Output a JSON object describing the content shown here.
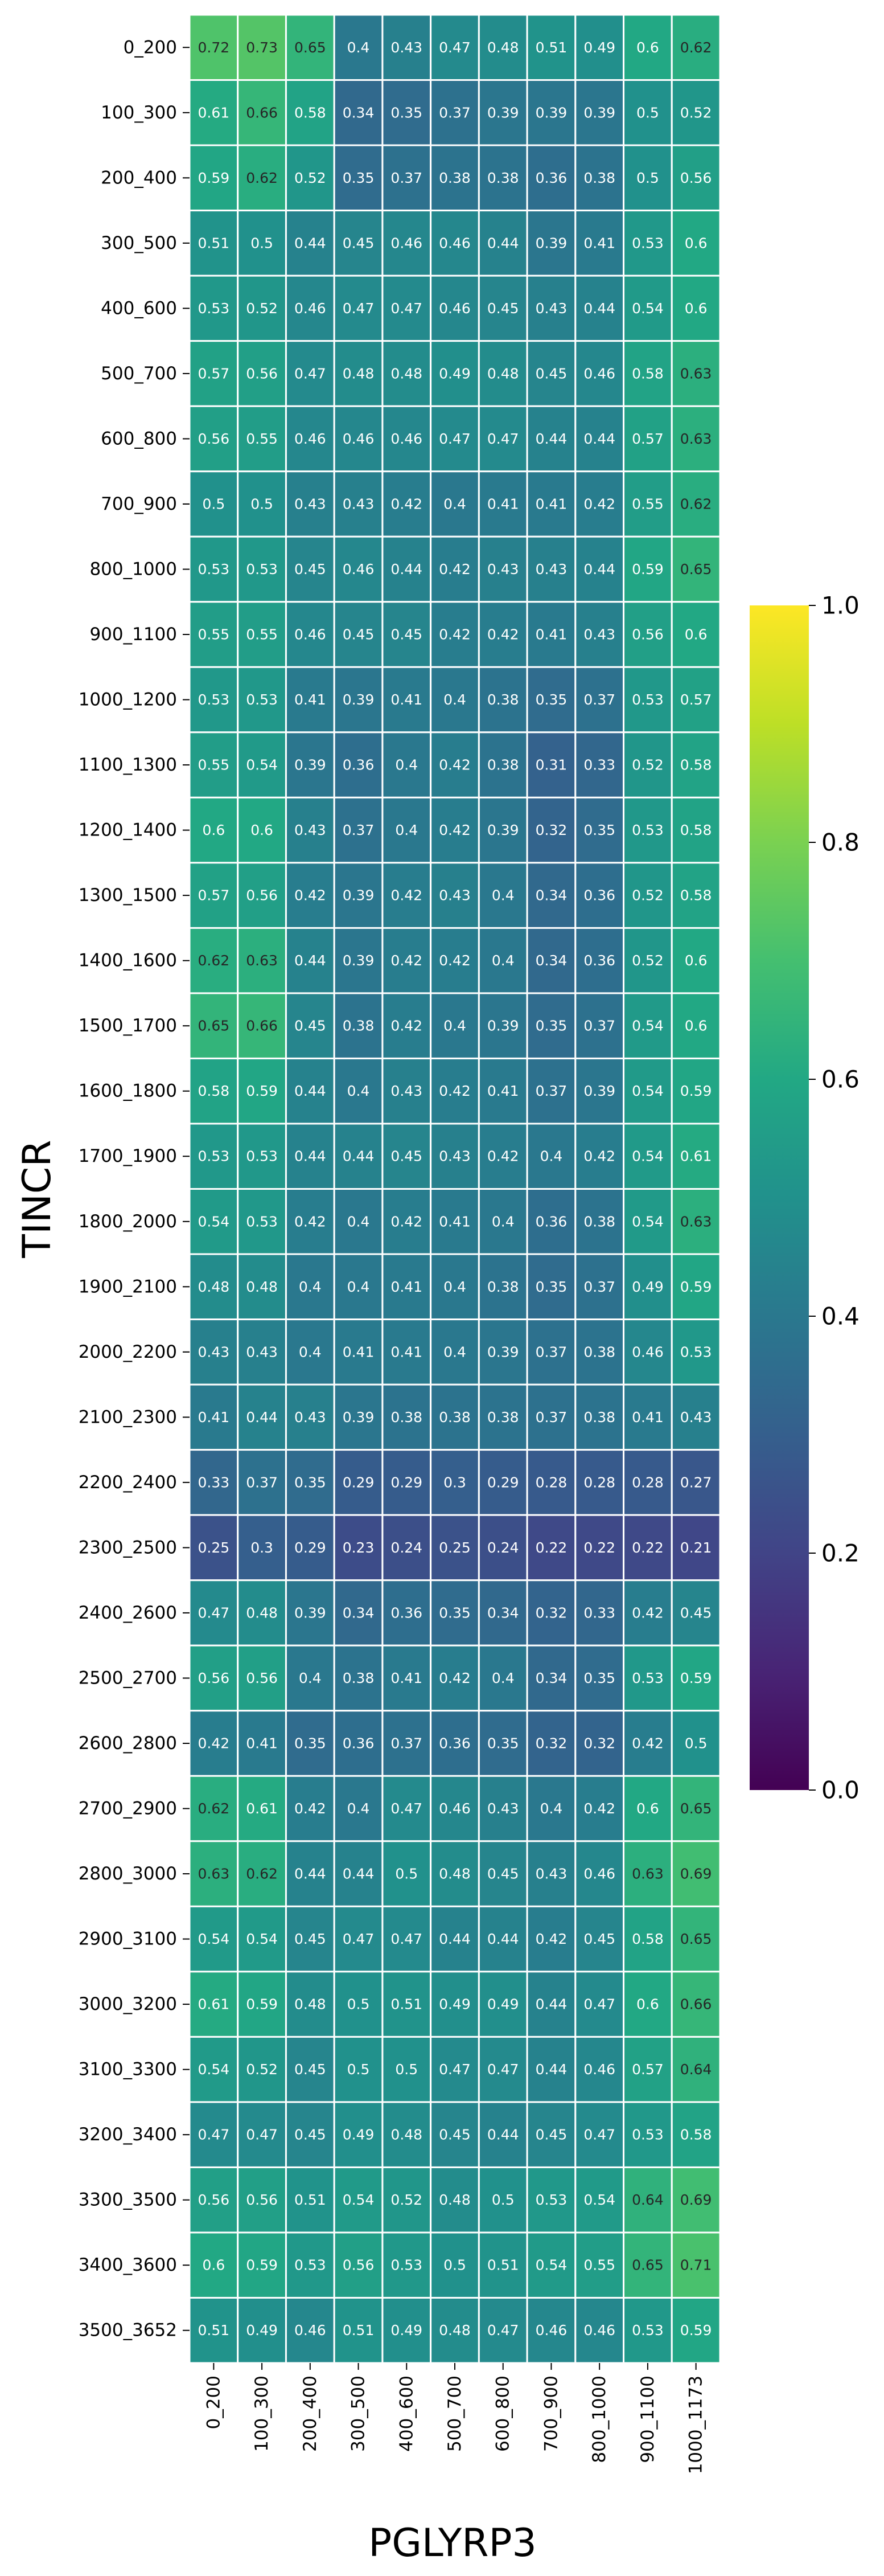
{
  "chart_data": {
    "type": "heatmap",
    "xlabel": "PGLYRP3",
    "ylabel": "TINCR",
    "x_categories": [
      "0_200",
      "100_300",
      "200_400",
      "300_500",
      "400_600",
      "500_700",
      "600_800",
      "700_900",
      "800_1000",
      "900_1100",
      "1000_1173"
    ],
    "y_categories": [
      "0_200",
      "100_300",
      "200_400",
      "300_500",
      "400_600",
      "500_700",
      "600_800",
      "700_900",
      "800_1000",
      "900_1100",
      "1000_1200",
      "1100_1300",
      "1200_1400",
      "1300_1500",
      "1400_1600",
      "1500_1700",
      "1600_1800",
      "1700_1900",
      "1800_2000",
      "1900_2100",
      "2000_2200",
      "2100_2300",
      "2200_2400",
      "2300_2500",
      "2400_2600",
      "2500_2700",
      "2600_2800",
      "2700_2900",
      "2800_3000",
      "2900_3100",
      "3000_3200",
      "3100_3300",
      "3200_3400",
      "3300_3500",
      "3400_3600",
      "3500_3652"
    ],
    "values": [
      [
        0.72,
        0.73,
        0.65,
        0.4,
        0.43,
        0.47,
        0.48,
        0.51,
        0.49,
        0.6,
        0.62
      ],
      [
        0.61,
        0.66,
        0.58,
        0.34,
        0.35,
        0.37,
        0.39,
        0.39,
        0.39,
        0.5,
        0.52
      ],
      [
        0.59,
        0.62,
        0.52,
        0.35,
        0.37,
        0.38,
        0.38,
        0.36,
        0.38,
        0.5,
        0.56
      ],
      [
        0.51,
        0.5,
        0.44,
        0.45,
        0.46,
        0.46,
        0.44,
        0.39,
        0.41,
        0.53,
        0.6
      ],
      [
        0.53,
        0.52,
        0.46,
        0.47,
        0.47,
        0.46,
        0.45,
        0.43,
        0.44,
        0.54,
        0.6
      ],
      [
        0.57,
        0.56,
        0.47,
        0.48,
        0.48,
        0.49,
        0.48,
        0.45,
        0.46,
        0.58,
        0.63
      ],
      [
        0.56,
        0.55,
        0.46,
        0.46,
        0.46,
        0.47,
        0.47,
        0.44,
        0.44,
        0.57,
        0.63
      ],
      [
        0.5,
        0.5,
        0.43,
        0.43,
        0.42,
        0.4,
        0.41,
        0.41,
        0.42,
        0.55,
        0.62
      ],
      [
        0.53,
        0.53,
        0.45,
        0.46,
        0.44,
        0.42,
        0.43,
        0.43,
        0.44,
        0.59,
        0.65
      ],
      [
        0.55,
        0.55,
        0.46,
        0.45,
        0.45,
        0.42,
        0.42,
        0.41,
        0.43,
        0.56,
        0.6
      ],
      [
        0.53,
        0.53,
        0.41,
        0.39,
        0.41,
        0.4,
        0.38,
        0.35,
        0.37,
        0.53,
        0.57
      ],
      [
        0.55,
        0.54,
        0.39,
        0.36,
        0.4,
        0.42,
        0.38,
        0.31,
        0.33,
        0.52,
        0.58
      ],
      [
        0.6,
        0.6,
        0.43,
        0.37,
        0.4,
        0.42,
        0.39,
        0.32,
        0.35,
        0.53,
        0.58
      ],
      [
        0.57,
        0.56,
        0.42,
        0.39,
        0.42,
        0.43,
        0.4,
        0.34,
        0.36,
        0.52,
        0.58
      ],
      [
        0.62,
        0.63,
        0.44,
        0.39,
        0.42,
        0.42,
        0.4,
        0.34,
        0.36,
        0.52,
        0.6
      ],
      [
        0.65,
        0.66,
        0.45,
        0.38,
        0.42,
        0.4,
        0.39,
        0.35,
        0.37,
        0.54,
        0.6
      ],
      [
        0.58,
        0.59,
        0.44,
        0.4,
        0.43,
        0.42,
        0.41,
        0.37,
        0.39,
        0.54,
        0.59
      ],
      [
        0.53,
        0.53,
        0.44,
        0.44,
        0.45,
        0.43,
        0.42,
        0.4,
        0.42,
        0.54,
        0.61
      ],
      [
        0.54,
        0.53,
        0.42,
        0.4,
        0.42,
        0.41,
        0.4,
        0.36,
        0.38,
        0.54,
        0.63
      ],
      [
        0.48,
        0.48,
        0.4,
        0.4,
        0.41,
        0.4,
        0.38,
        0.35,
        0.37,
        0.49,
        0.59
      ],
      [
        0.43,
        0.43,
        0.4,
        0.41,
        0.41,
        0.4,
        0.39,
        0.37,
        0.38,
        0.46,
        0.53
      ],
      [
        0.41,
        0.44,
        0.43,
        0.39,
        0.38,
        0.38,
        0.38,
        0.37,
        0.38,
        0.41,
        0.43
      ],
      [
        0.33,
        0.37,
        0.35,
        0.29,
        0.29,
        0.3,
        0.29,
        0.28,
        0.28,
        0.28,
        0.27
      ],
      [
        0.25,
        0.3,
        0.29,
        0.23,
        0.24,
        0.25,
        0.24,
        0.22,
        0.22,
        0.22,
        0.21
      ],
      [
        0.47,
        0.48,
        0.39,
        0.34,
        0.36,
        0.35,
        0.34,
        0.32,
        0.33,
        0.42,
        0.45
      ],
      [
        0.56,
        0.56,
        0.4,
        0.38,
        0.41,
        0.42,
        0.4,
        0.34,
        0.35,
        0.53,
        0.59
      ],
      [
        0.42,
        0.41,
        0.35,
        0.36,
        0.37,
        0.36,
        0.35,
        0.32,
        0.32,
        0.42,
        0.5
      ],
      [
        0.62,
        0.61,
        0.42,
        0.4,
        0.47,
        0.46,
        0.43,
        0.4,
        0.42,
        0.6,
        0.65
      ],
      [
        0.63,
        0.62,
        0.44,
        0.44,
        0.5,
        0.48,
        0.45,
        0.43,
        0.46,
        0.63,
        0.69
      ],
      [
        0.54,
        0.54,
        0.45,
        0.47,
        0.47,
        0.44,
        0.44,
        0.42,
        0.45,
        0.58,
        0.65
      ],
      [
        0.61,
        0.59,
        0.48,
        0.5,
        0.51,
        0.49,
        0.49,
        0.44,
        0.47,
        0.6,
        0.66
      ],
      [
        0.54,
        0.52,
        0.45,
        0.5,
        0.5,
        0.47,
        0.47,
        0.44,
        0.46,
        0.57,
        0.64
      ],
      [
        0.47,
        0.47,
        0.45,
        0.49,
        0.48,
        0.45,
        0.44,
        0.45,
        0.47,
        0.53,
        0.58
      ],
      [
        0.56,
        0.56,
        0.51,
        0.54,
        0.52,
        0.48,
        0.5,
        0.53,
        0.54,
        0.64,
        0.69
      ],
      [
        0.6,
        0.59,
        0.53,
        0.56,
        0.53,
        0.5,
        0.51,
        0.54,
        0.55,
        0.65,
        0.71
      ],
      [
        0.51,
        0.49,
        0.46,
        0.51,
        0.49,
        0.48,
        0.47,
        0.46,
        0.46,
        0.53,
        0.59
      ]
    ],
    "vmin": 0.0,
    "vmax": 1.0,
    "colormap": "viridis",
    "colorbar_ticks": [
      "0.0",
      "0.2",
      "0.4",
      "0.6",
      "0.8",
      "1.0"
    ],
    "cell_border_color": "#ffffff",
    "annotations": true,
    "legend_placement": "colorbar right"
  }
}
